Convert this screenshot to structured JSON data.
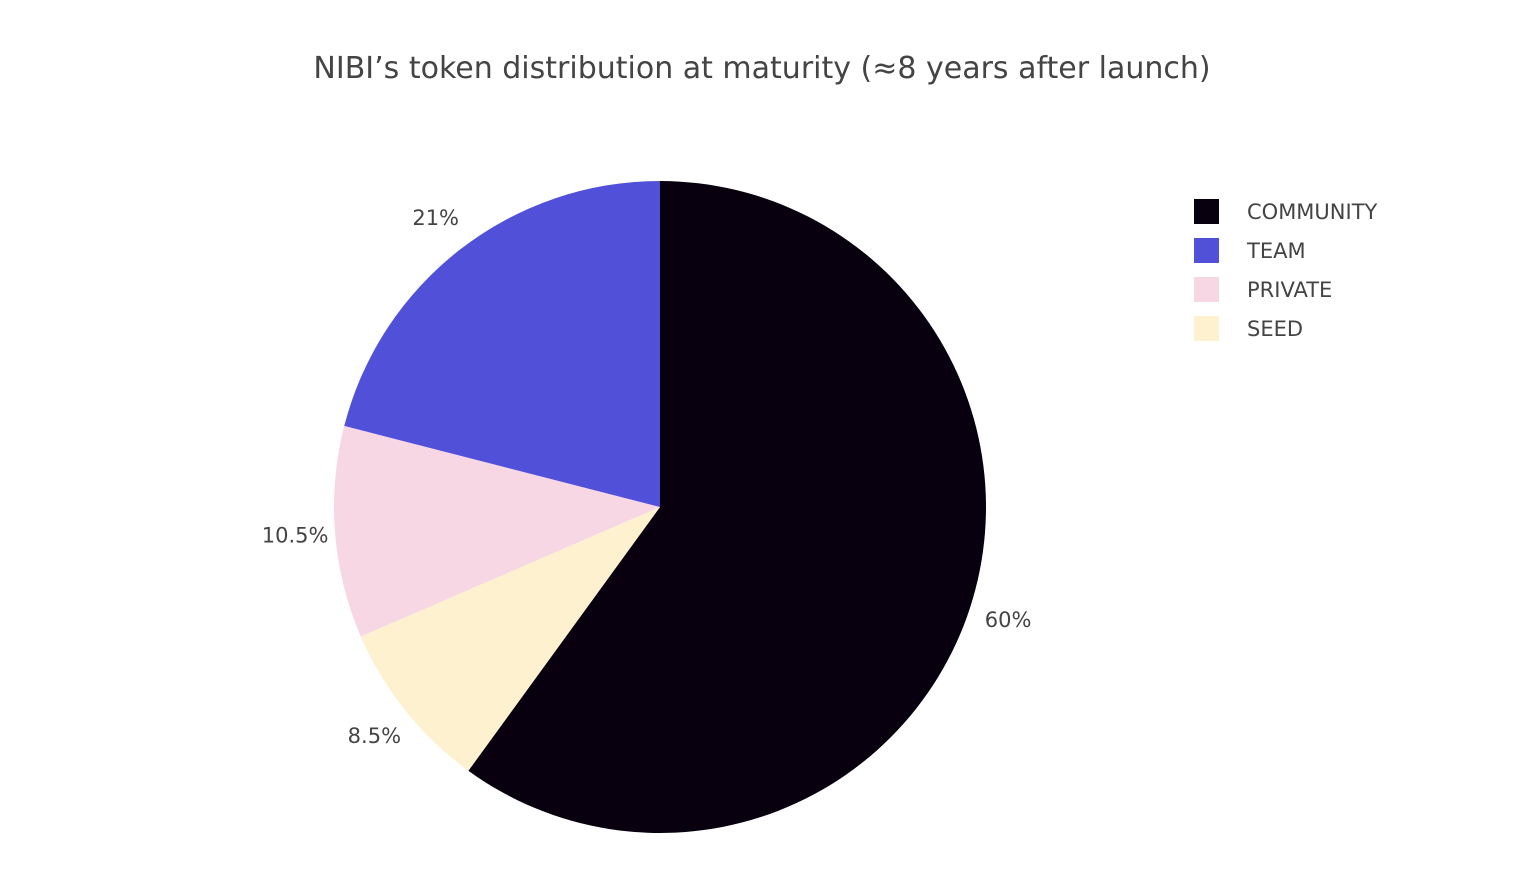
{
  "chart_data": {
    "type": "pie",
    "title": "NIBI’s token distribution at maturity (≈8 years after launch)",
    "legend_position": "top-right",
    "slices": [
      {
        "label": "COMMUNITY",
        "value": 60,
        "display": "60%",
        "color": "#08000f"
      },
      {
        "label": "SEED",
        "value": 8.5,
        "display": "8.5%",
        "color": "#fdf1cf"
      },
      {
        "label": "PRIVATE",
        "value": 10.5,
        "display": "10.5%",
        "color": "#f8d7e5"
      },
      {
        "label": "TEAM",
        "value": 21,
        "display": "21%",
        "color": "#5150d9"
      }
    ],
    "legend": [
      {
        "label": "COMMUNITY",
        "color": "#08000f"
      },
      {
        "label": "TEAM",
        "color": "#5150d9"
      },
      {
        "label": "PRIVATE",
        "color": "#f8d7e5"
      },
      {
        "label": "SEED",
        "color": "#fdf1cf"
      }
    ]
  }
}
